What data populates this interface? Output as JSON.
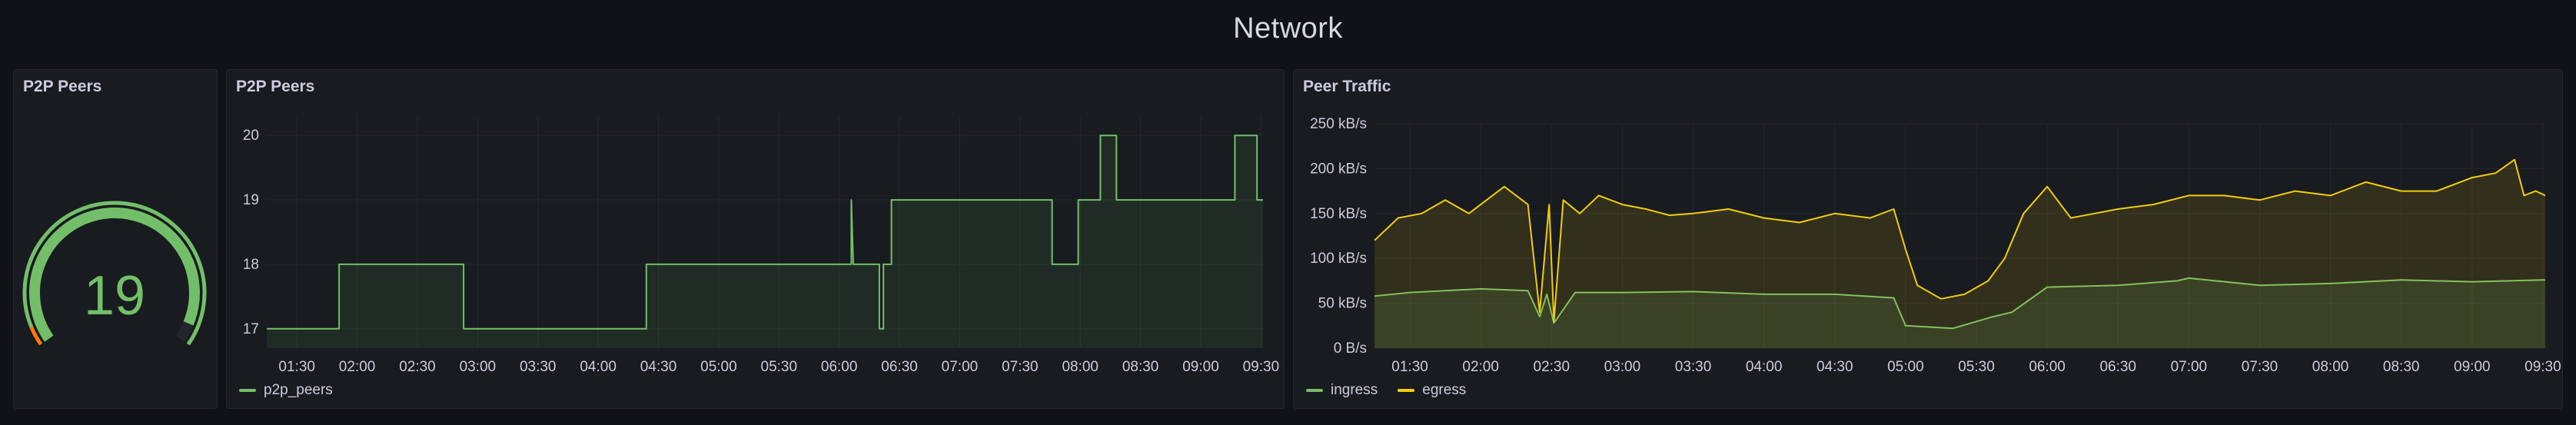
{
  "dashboard": {
    "row_title": "Network"
  },
  "gauge_panel": {
    "title": "P2P Peers",
    "value": "19",
    "min": 0,
    "max": 20,
    "threshold": 1,
    "colors": {
      "value": "#73bf69",
      "warn": "#ff780a",
      "track": "#22252b"
    }
  },
  "peers_panel": {
    "title": "P2P Peers",
    "legend": [
      {
        "label": "p2p_peers",
        "color": "#73bf69"
      }
    ]
  },
  "traffic_panel": {
    "title": "Peer Traffic",
    "legend": [
      {
        "label": "ingress",
        "color": "#73bf69"
      },
      {
        "label": "egress",
        "color": "#f2cc0c"
      }
    ]
  },
  "chart_data": [
    {
      "type": "line",
      "title": "P2P Peers",
      "time_start": "01:15",
      "time_end": "09:31",
      "ylim": [
        16.7,
        20.3
      ],
      "y_ticks": [
        "17",
        "18",
        "19",
        "20"
      ],
      "x_ticks": [
        "01:30",
        "02:00",
        "02:30",
        "03:00",
        "03:30",
        "04:00",
        "04:30",
        "05:00",
        "05:30",
        "06:00",
        "06:30",
        "07:00",
        "07:30",
        "08:00",
        "08:30",
        "09:00",
        "09:30"
      ],
      "grid": true,
      "series": [
        {
          "name": "p2p_peers",
          "color": "#73bf69",
          "t": [
            "01:15",
            "01:51",
            "01:51",
            "02:53",
            "02:53",
            "04:24",
            "04:24",
            "06:06",
            "06:06",
            "06:07",
            "06:07",
            "06:20",
            "06:20",
            "06:22",
            "06:22",
            "06:26",
            "06:26",
            "06:30",
            "06:30",
            "07:46",
            "07:46",
            "07:59",
            "07:59",
            "08:10",
            "08:10",
            "08:18",
            "08:18",
            "09:17",
            "09:17",
            "09:28",
            "09:28",
            "09:31"
          ],
          "values": [
            17,
            17,
            18,
            18,
            17,
            17,
            18,
            18,
            19,
            18,
            18,
            18,
            17,
            17,
            18,
            18,
            19,
            19,
            19,
            19,
            18,
            18,
            19,
            19,
            20,
            20,
            19,
            19,
            20,
            20,
            19,
            19
          ]
        }
      ]
    },
    {
      "type": "area",
      "title": "Peer Traffic",
      "time_start": "01:15",
      "time_end": "09:31",
      "y_unit": "kB/s",
      "ylim": [
        0,
        250
      ],
      "y_ticks": [
        "0 B/s",
        "50 kB/s",
        "100 kB/s",
        "150 kB/s",
        "200 kB/s",
        "250 kB/s"
      ],
      "x_ticks": [
        "01:30",
        "02:00",
        "02:30",
        "03:00",
        "03:30",
        "04:00",
        "04:30",
        "05:00",
        "05:30",
        "06:00",
        "06:30",
        "07:00",
        "07:30",
        "08:00",
        "08:30",
        "09:00",
        "09:30"
      ],
      "grid": true,
      "series": [
        {
          "name": "ingress",
          "color": "#73bf69",
          "t": [
            "01:15",
            "01:30",
            "02:00",
            "02:20",
            "02:25",
            "02:28",
            "02:31",
            "02:40",
            "03:00",
            "03:30",
            "04:00",
            "04:30",
            "04:55",
            "05:00",
            "05:20",
            "05:37",
            "05:45",
            "06:00",
            "06:30",
            "06:55",
            "07:00",
            "07:30",
            "08:00",
            "08:30",
            "09:00",
            "09:31"
          ],
          "values": [
            58,
            62,
            66,
            64,
            35,
            60,
            28,
            62,
            62,
            63,
            60,
            60,
            56,
            25,
            22,
            35,
            40,
            68,
            70,
            75,
            78,
            70,
            72,
            76,
            74,
            76
          ]
        },
        {
          "name": "egress",
          "color": "#f2cc0c",
          "t": [
            "01:15",
            "01:25",
            "01:35",
            "01:45",
            "01:55",
            "02:05",
            "02:10",
            "02:20",
            "02:25",
            "02:29",
            "02:31",
            "02:35",
            "02:42",
            "02:50",
            "03:00",
            "03:10",
            "03:20",
            "03:30",
            "03:45",
            "04:00",
            "04:15",
            "04:30",
            "04:45",
            "04:55",
            "05:00",
            "05:05",
            "05:15",
            "05:25",
            "05:35",
            "05:42",
            "05:50",
            "06:00",
            "06:10",
            "06:20",
            "06:30",
            "06:45",
            "07:00",
            "07:15",
            "07:30",
            "07:45",
            "08:00",
            "08:15",
            "08:30",
            "08:45",
            "09:00",
            "09:10",
            "09:18",
            "09:22",
            "09:27",
            "09:31"
          ],
          "values": [
            120,
            145,
            150,
            165,
            150,
            170,
            180,
            160,
            40,
            160,
            30,
            165,
            150,
            170,
            160,
            155,
            148,
            150,
            155,
            145,
            140,
            150,
            145,
            155,
            110,
            70,
            55,
            60,
            75,
            100,
            150,
            180,
            145,
            150,
            155,
            160,
            170,
            170,
            165,
            175,
            170,
            185,
            175,
            175,
            190,
            195,
            210,
            170,
            175,
            170
          ]
        }
      ]
    }
  ]
}
